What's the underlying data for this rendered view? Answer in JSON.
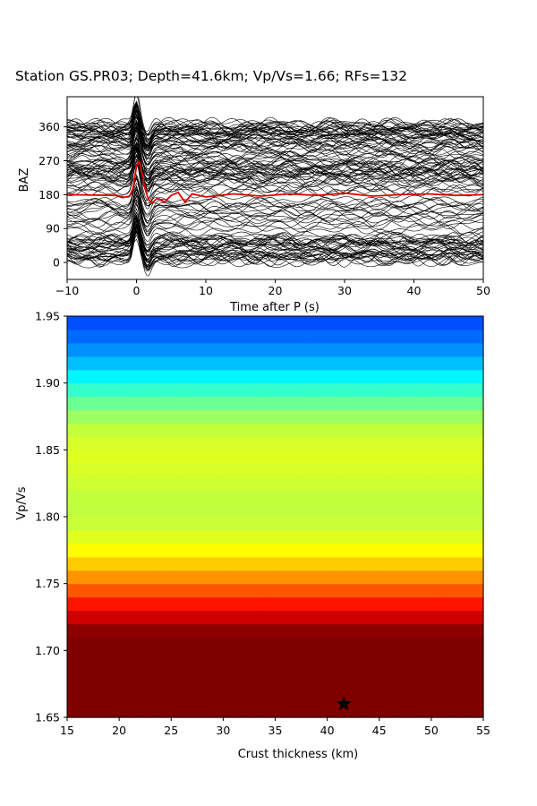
{
  "title": "Station GS.PR03; Depth=41.6km; Vp/Vs=1.66; RFs=132",
  "chart_data": [
    {
      "type": "line",
      "panel": "receiver-functions",
      "xlabel": "Time after P (s)",
      "ylabel": "BAZ",
      "xlim": [
        -10,
        50
      ],
      "ylim": [
        -45,
        440
      ],
      "xticks": [
        -10,
        0,
        10,
        20,
        30,
        40,
        50
      ],
      "yticks": [
        0,
        90,
        180,
        270,
        360
      ],
      "trace_count": 132,
      "trace_color": "#000000",
      "stack_color": "#e00000",
      "baz_groups": [
        {
          "baz_min": -5,
          "baz_max": 70,
          "count": 36
        },
        {
          "baz_min": 80,
          "baz_max": 170,
          "count": 18
        },
        {
          "baz_min": 190,
          "baz_max": 300,
          "count": 40
        },
        {
          "baz_min": 300,
          "baz_max": 370,
          "count": 38
        }
      ],
      "stack": {
        "baseline_baz": 180,
        "x": [
          -10,
          -3,
          -2,
          -1,
          -0.5,
          0,
          0.4,
          0.8,
          1.2,
          1.7,
          2.2,
          3,
          4,
          5,
          6,
          7,
          8,
          10,
          14,
          18,
          22,
          26,
          30,
          34,
          38,
          42,
          46,
          50
        ],
        "y": [
          180,
          178,
          172,
          176,
          196,
          255,
          268,
          238,
          198,
          168,
          158,
          170,
          160,
          178,
          186,
          160,
          182,
          174,
          182,
          176,
          182,
          178,
          184,
          176,
          180,
          182,
          178,
          180
        ]
      }
    },
    {
      "type": "heatmap",
      "panel": "h-k-stacking",
      "xlabel": "Crust thickness (km)",
      "ylabel": "Vp/Vs",
      "xlim": [
        15,
        55
      ],
      "ylim": [
        1.65,
        1.95
      ],
      "xticks": [
        15,
        20,
        25,
        30,
        35,
        40,
        45,
        50,
        55
      ],
      "yticks": [
        "1.65",
        "1.70",
        "1.75",
        "1.80",
        "1.85",
        "1.90",
        "1.95"
      ],
      "colormap": "jet",
      "grid_h": {
        "start": 15,
        "end": 55,
        "step": 0.5
      },
      "grid_k": {
        "start": 1.65,
        "end": 1.95,
        "step": 0.01
      },
      "best": {
        "thickness_km": 41.6,
        "vp_vs": 1.66
      }
    }
  ]
}
